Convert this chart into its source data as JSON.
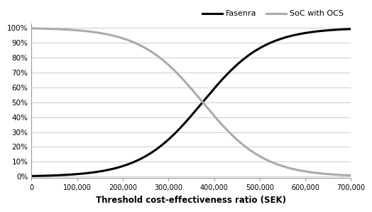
{
  "title": "",
  "xlabel": "Threshold cost-effectiveness ratio (SEK)",
  "ylabel": "",
  "xlim": [
    0,
    700000
  ],
  "ylim": [
    0,
    1.0
  ],
  "xticks": [
    0,
    100000,
    200000,
    300000,
    400000,
    500000,
    600000,
    700000
  ],
  "xtick_labels": [
    "0",
    "100,000",
    "200,000",
    "300,000",
    "400,000",
    "500,000",
    "600,000",
    "700,000"
  ],
  "ytick_vals": [
    0.0,
    0.1,
    0.2,
    0.3,
    0.4,
    0.5,
    0.6,
    0.7,
    0.8,
    0.9,
    1.0
  ],
  "ytick_labels": [
    "0%",
    "10%",
    "20%",
    "30%",
    "40%",
    "50%",
    "60%",
    "70%",
    "80%",
    "90%",
    "100%"
  ],
  "fasenra_color": "#000000",
  "soc_color": "#aaaaaa",
  "fasenra_label": "Fasenra",
  "soc_label": "SoC with OCS",
  "fasenra_midpoint": 375000,
  "fasenra_scale": 68000,
  "soc_midpoint": 375000,
  "soc_scale": 68000,
  "background_color": "#ffffff",
  "grid_color": "#cccccc",
  "line_width": 2.2
}
